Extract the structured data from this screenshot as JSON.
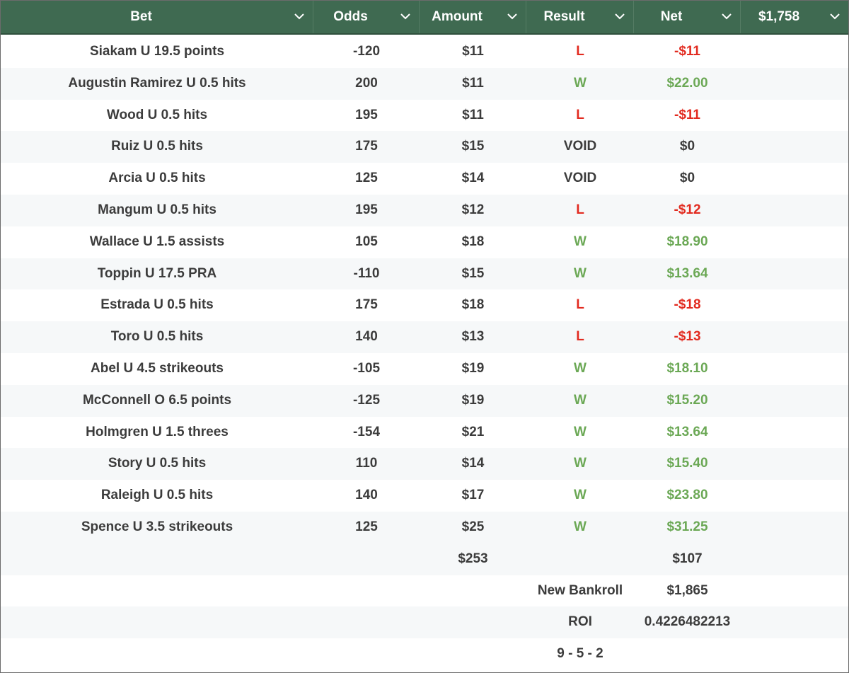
{
  "header": {
    "columns": [
      {
        "key": "bet",
        "label": "Bet"
      },
      {
        "key": "odds",
        "label": "Odds"
      },
      {
        "key": "amount",
        "label": "Amount"
      },
      {
        "key": "result",
        "label": "Result"
      },
      {
        "key": "net",
        "label": "Net"
      },
      {
        "key": "bankroll",
        "label": "$1,758"
      }
    ]
  },
  "colors": {
    "header_bg": "#3f6a51",
    "win": "#6ba855",
    "loss": "#e22b20",
    "text": "#3c3c3c"
  },
  "rows": [
    {
      "bet": "Siakam U 19.5 points",
      "odds": "-120",
      "amount": "$11",
      "result": "L",
      "net": "-$11"
    },
    {
      "bet": "Augustin Ramirez U 0.5 hits",
      "odds": "200",
      "amount": "$11",
      "result": "W",
      "net": "$22.00"
    },
    {
      "bet": "Wood U 0.5 hits",
      "odds": "195",
      "amount": "$11",
      "result": "L",
      "net": "-$11"
    },
    {
      "bet": "Ruiz U 0.5 hits",
      "odds": "175",
      "amount": "$15",
      "result": "VOID",
      "net": "$0"
    },
    {
      "bet": "Arcia U 0.5 hits",
      "odds": "125",
      "amount": "$14",
      "result": "VOID",
      "net": "$0"
    },
    {
      "bet": "Mangum U 0.5 hits",
      "odds": "195",
      "amount": "$12",
      "result": "L",
      "net": "-$12"
    },
    {
      "bet": "Wallace U 1.5 assists",
      "odds": "105",
      "amount": "$18",
      "result": "W",
      "net": "$18.90"
    },
    {
      "bet": "Toppin U 17.5 PRA",
      "odds": "-110",
      "amount": "$15",
      "result": "W",
      "net": "$13.64"
    },
    {
      "bet": "Estrada U 0.5 hits",
      "odds": "175",
      "amount": "$18",
      "result": "L",
      "net": "-$18"
    },
    {
      "bet": "Toro U 0.5 hits",
      "odds": "140",
      "amount": "$13",
      "result": "L",
      "net": "-$13"
    },
    {
      "bet": "Abel U 4.5 strikeouts",
      "odds": "-105",
      "amount": "$19",
      "result": "W",
      "net": "$18.10"
    },
    {
      "bet": "McConnell O 6.5 points",
      "odds": "-125",
      "amount": "$19",
      "result": "W",
      "net": "$15.20"
    },
    {
      "bet": "Holmgren U 1.5 threes",
      "odds": "-154",
      "amount": "$21",
      "result": "W",
      "net": "$13.64"
    },
    {
      "bet": "Story U 0.5 hits",
      "odds": "110",
      "amount": "$14",
      "result": "W",
      "net": "$15.40"
    },
    {
      "bet": "Raleigh U 0.5 hits",
      "odds": "140",
      "amount": "$17",
      "result": "W",
      "net": "$23.80"
    },
    {
      "bet": "Spence U 3.5 strikeouts",
      "odds": "125",
      "amount": "$25",
      "result": "W",
      "net": "$31.25"
    }
  ],
  "summary": {
    "total_amount": "$253",
    "total_net": "$107",
    "new_bankroll_label": "New Bankroll",
    "new_bankroll_value": "$1,865",
    "roi_label": "ROI",
    "roi_value": "0.4226482213",
    "record": "9 - 5 - 2"
  }
}
